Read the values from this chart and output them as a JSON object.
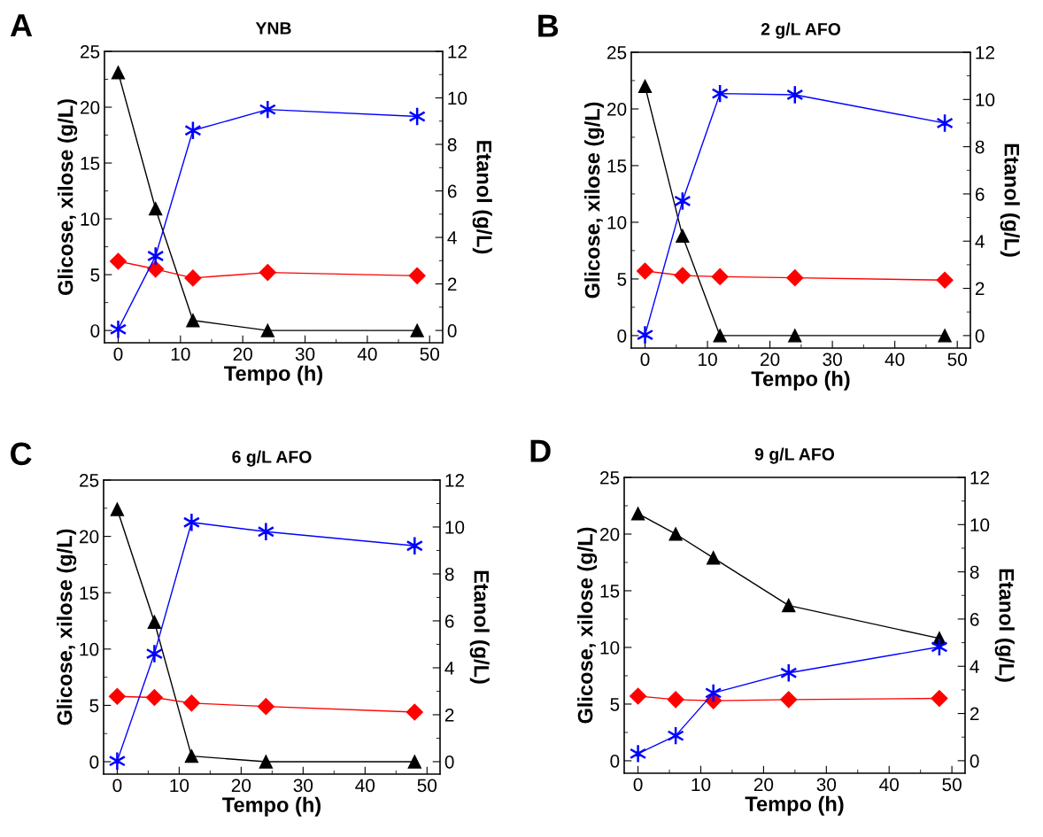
{
  "chart_data": [
    {
      "type": "line",
      "title": "YNB",
      "annotations": [
        "A"
      ],
      "xlabel": "Tempo (h)",
      "ylabel": "Glicose, xilose (g/L)",
      "y2label": "Etanol (g/L)",
      "x": [
        0,
        6,
        12,
        24,
        48
      ],
      "xlim": [
        -2.2,
        52.1
      ],
      "xticks": [
        0,
        10,
        20,
        30,
        40,
        50
      ],
      "ylim": [
        -1.1,
        25
      ],
      "yticks": [
        0,
        5,
        10,
        15,
        20,
        25
      ],
      "y2lim": [
        -0.53,
        12
      ],
      "y2ticks": [
        0,
        2,
        4,
        6,
        8,
        10,
        12
      ],
      "grid": false,
      "line_style": "solid",
      "series": [
        {
          "color": "#000000",
          "marker": "triangle",
          "values": [
            23.1,
            10.9,
            0.9,
            0,
            0
          ]
        },
        {
          "color": "#ff0000",
          "marker": "diamond",
          "values": [
            6.2,
            5.5,
            4.7,
            5.2,
            4.9
          ]
        },
        {
          "color": "#0000ff",
          "marker": "cross",
          "axis": "y2",
          "values": [
            0.05,
            3.2,
            8.6,
            9.5,
            9.2
          ]
        }
      ]
    },
    {
      "type": "line",
      "title": "2 g/L AFO",
      "annotations": [
        "B"
      ],
      "xlabel": "Tempo (h)",
      "ylabel": "Glicose, xilose (g/L)",
      "y2label": "Etanol (g/L)",
      "x": [
        0,
        6,
        12,
        24,
        48
      ],
      "xlim": [
        -2.2,
        52.1
      ],
      "xticks": [
        0,
        10,
        20,
        30,
        40,
        50
      ],
      "ylim": [
        -1.1,
        25
      ],
      "yticks": [
        0,
        5,
        10,
        15,
        20,
        25
      ],
      "y2lim": [
        -0.53,
        12
      ],
      "y2ticks": [
        0,
        2,
        4,
        6,
        8,
        10,
        12
      ],
      "grid": false,
      "line_style": "solid",
      "series": [
        {
          "color": "#000000",
          "marker": "triangle",
          "values": [
            22.0,
            8.8,
            0,
            0,
            0
          ]
        },
        {
          "color": "#ff0000",
          "marker": "diamond",
          "values": [
            5.7,
            5.3,
            5.2,
            5.1,
            4.9
          ]
        },
        {
          "color": "#0000ff",
          "marker": "cross",
          "axis": "y2",
          "values": [
            0.03,
            5.7,
            10.25,
            10.2,
            9.0
          ]
        }
      ]
    },
    {
      "type": "line",
      "title": "6 g/L AFO",
      "annotations": [
        "C"
      ],
      "xlabel": "Tempo (h)",
      "ylabel": "Glicose, xilose (g/L)",
      "y2label": "Etanol (g/L)",
      "x": [
        0,
        6,
        12,
        24,
        48
      ],
      "xlim": [
        -2.2,
        52.1
      ],
      "xticks": [
        0,
        10,
        20,
        30,
        40,
        50
      ],
      "ylim": [
        -1.1,
        25
      ],
      "yticks": [
        0,
        5,
        10,
        15,
        20,
        25
      ],
      "y2lim": [
        -0.53,
        12
      ],
      "y2ticks": [
        0,
        2,
        4,
        6,
        8,
        10,
        12
      ],
      "grid": false,
      "line_style": "solid",
      "series": [
        {
          "color": "#000000",
          "marker": "triangle",
          "values": [
            22.4,
            12.4,
            0.5,
            0,
            0
          ]
        },
        {
          "color": "#ff0000",
          "marker": "diamond",
          "values": [
            5.8,
            5.7,
            5.2,
            4.9,
            4.4
          ]
        },
        {
          "color": "#0000ff",
          "marker": "cross",
          "axis": "y2",
          "values": [
            0.03,
            4.6,
            10.2,
            9.8,
            9.2
          ]
        }
      ]
    },
    {
      "type": "line",
      "title": "9 g/L AFO",
      "annotations": [
        "D"
      ],
      "xlabel": "Tempo (h)",
      "ylabel": "Glicose, xilose (g/L)",
      "y2label": "Etanol (g/L)",
      "x": [
        0,
        6,
        12,
        24,
        48
      ],
      "xlim": [
        -2.2,
        52.1
      ],
      "xticks": [
        0,
        10,
        20,
        30,
        40,
        50
      ],
      "ylim": [
        -1.1,
        25
      ],
      "yticks": [
        0,
        5,
        10,
        15,
        20,
        25
      ],
      "y2lim": [
        -0.53,
        12
      ],
      "y2ticks": [
        0,
        2,
        4,
        6,
        8,
        10,
        12
      ],
      "grid": false,
      "line_style": "solid",
      "series": [
        {
          "color": "#000000",
          "marker": "triangle",
          "values": [
            21.8,
            20.0,
            17.9,
            13.7,
            10.8
          ]
        },
        {
          "color": "#ff0000",
          "marker": "diamond",
          "values": [
            5.7,
            5.4,
            5.3,
            5.4,
            5.5
          ]
        },
        {
          "color": "#0000ff",
          "marker": "cross",
          "axis": "y2",
          "values": [
            0.3,
            1.06,
            2.87,
            3.72,
            4.82
          ]
        }
      ]
    }
  ]
}
